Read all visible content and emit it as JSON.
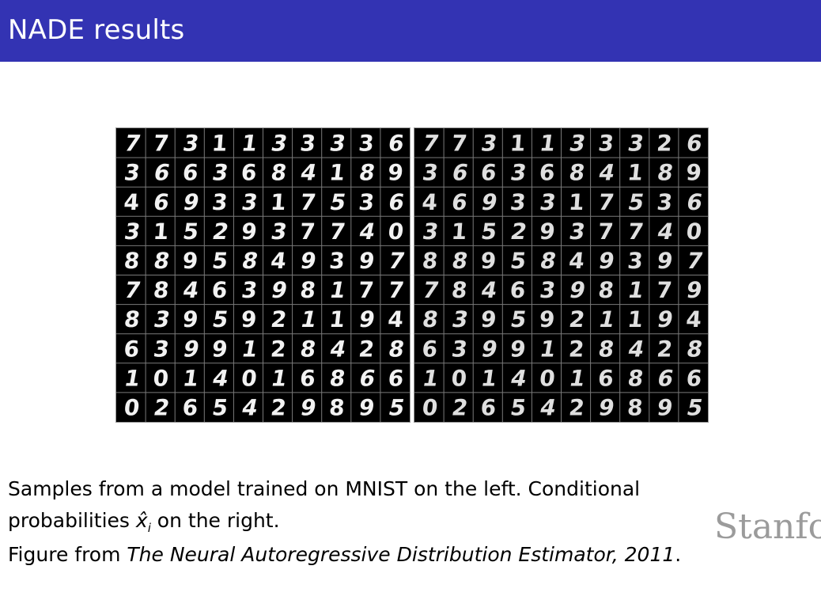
{
  "slide": {
    "title": "NADE results",
    "theme_color": "#3333b3"
  },
  "figure": {
    "grid_rows": 10,
    "grid_cols": 10,
    "left_panel": {
      "digits": [
        "7731133336",
        "3663684189",
        "4693317536",
        "3152937740",
        "8895849397",
        "7846398177",
        "8395921194",
        "6399128428",
        "1014016866",
        "0265429895"
      ]
    },
    "right_panel": {
      "digits": [
        "7731133326",
        "3663684189",
        "4693317536",
        "3152937740",
        "8895849397",
        "7846398179",
        "8395921194",
        "6399128428",
        "1014016866",
        "0265429895"
      ]
    }
  },
  "caption": {
    "line1": "Samples from a model trained on MNIST on the left.  Conditional",
    "line2_prefix": "probabilities ",
    "line2_symbol": "x̂",
    "line2_subscript": "i",
    "line2_suffix": " on the right.",
    "line3_prefix": "Figure from ",
    "line3_paper": "The Neural Autoregressive Distribution Estimator, 2011",
    "line3_suffix": "."
  },
  "logo": {
    "text": "Stanfo"
  }
}
